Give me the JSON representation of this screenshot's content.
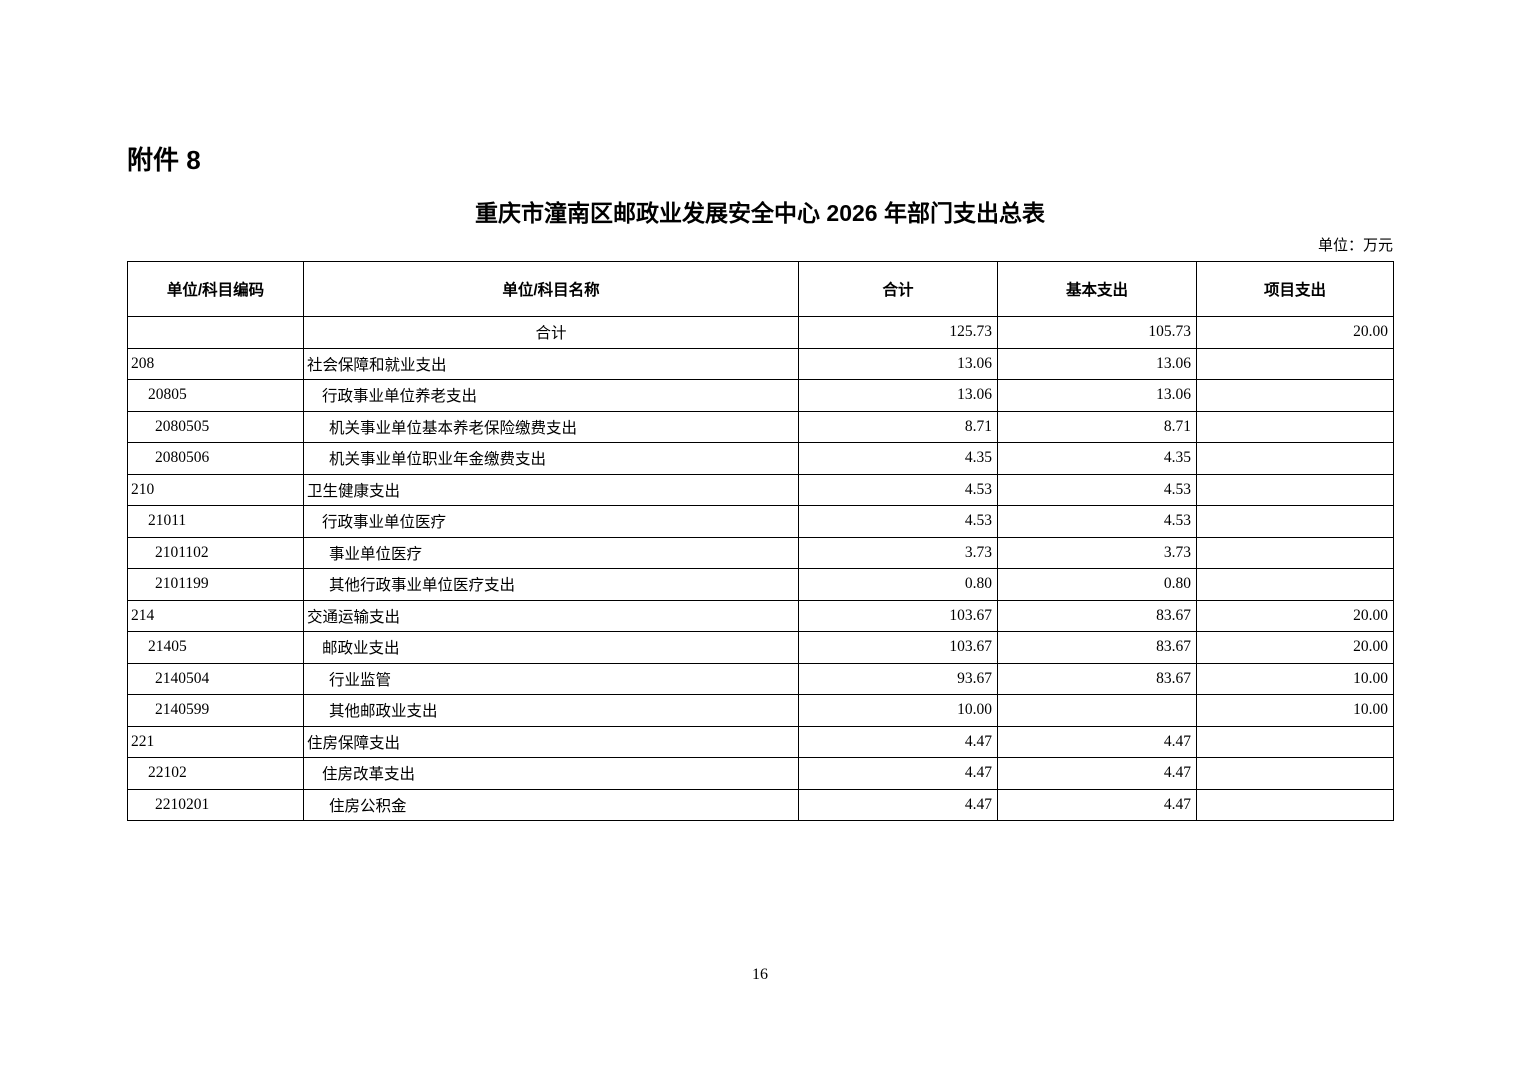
{
  "document": {
    "attachment_label": "附件 8",
    "title": "重庆市潼南区邮政业发展安全中心 2026 年部门支出总表",
    "unit_note": "单位：万元",
    "page_number": "16"
  },
  "table": {
    "headers": [
      "单位/科目编码",
      "单位/科目名称",
      "合计",
      "基本支出",
      "项目支出"
    ],
    "rows": [
      {
        "code": "",
        "name": "合计",
        "level": 0,
        "total": "125.73",
        "basic": "105.73",
        "project": "20.00"
      },
      {
        "code": "208",
        "name": "社会保障和就业支出",
        "level": 1,
        "total": "13.06",
        "basic": "13.06",
        "project": ""
      },
      {
        "code": "20805",
        "name": "行政事业单位养老支出",
        "level": 2,
        "total": "13.06",
        "basic": "13.06",
        "project": ""
      },
      {
        "code": "2080505",
        "name": "机关事业单位基本养老保险缴费支出",
        "level": 3,
        "total": "8.71",
        "basic": "8.71",
        "project": ""
      },
      {
        "code": "2080506",
        "name": "机关事业单位职业年金缴费支出",
        "level": 3,
        "total": "4.35",
        "basic": "4.35",
        "project": ""
      },
      {
        "code": "210",
        "name": "卫生健康支出",
        "level": 1,
        "total": "4.53",
        "basic": "4.53",
        "project": ""
      },
      {
        "code": "21011",
        "name": "行政事业单位医疗",
        "level": 2,
        "total": "4.53",
        "basic": "4.53",
        "project": ""
      },
      {
        "code": "2101102",
        "name": "事业单位医疗",
        "level": 3,
        "total": "3.73",
        "basic": "3.73",
        "project": ""
      },
      {
        "code": "2101199",
        "name": "其他行政事业单位医疗支出",
        "level": 3,
        "total": "0.80",
        "basic": "0.80",
        "project": ""
      },
      {
        "code": "214",
        "name": "交通运输支出",
        "level": 1,
        "total": "103.67",
        "basic": "83.67",
        "project": "20.00"
      },
      {
        "code": "21405",
        "name": "邮政业支出",
        "level": 2,
        "total": "103.67",
        "basic": "83.67",
        "project": "20.00"
      },
      {
        "code": "2140504",
        "name": "行业监管",
        "level": 3,
        "total": "93.67",
        "basic": "83.67",
        "project": "10.00"
      },
      {
        "code": "2140599",
        "name": "其他邮政业支出",
        "level": 3,
        "total": "10.00",
        "basic": "",
        "project": "10.00"
      },
      {
        "code": "221",
        "name": "住房保障支出",
        "level": 1,
        "total": "4.47",
        "basic": "4.47",
        "project": ""
      },
      {
        "code": "22102",
        "name": "住房改革支出",
        "level": 2,
        "total": "4.47",
        "basic": "4.47",
        "project": ""
      },
      {
        "code": "2210201",
        "name": "住房公积金",
        "level": 3,
        "total": "4.47",
        "basic": "4.47",
        "project": ""
      }
    ]
  }
}
